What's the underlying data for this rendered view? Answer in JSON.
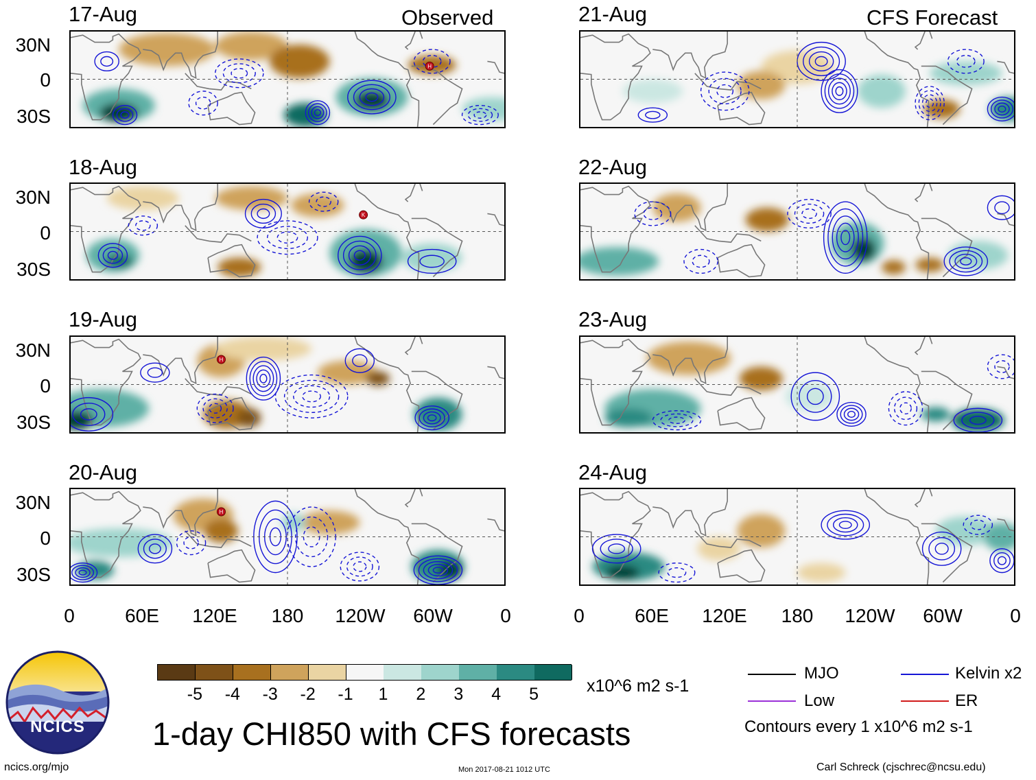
{
  "headers": {
    "observed": "Observed",
    "forecast": "CFS Forecast"
  },
  "panels": [
    {
      "date": "17-Aug",
      "type": "observed"
    },
    {
      "date": "18-Aug",
      "type": "observed"
    },
    {
      "date": "19-Aug",
      "type": "observed"
    },
    {
      "date": "20-Aug",
      "type": "observed"
    },
    {
      "date": "21-Aug",
      "type": "forecast"
    },
    {
      "date": "22-Aug",
      "type": "forecast"
    },
    {
      "date": "23-Aug",
      "type": "forecast"
    },
    {
      "date": "24-Aug",
      "type": "forecast"
    }
  ],
  "lat_labels": [
    "30N",
    "0",
    "30S"
  ],
  "lon_labels": [
    "0",
    "60E",
    "120E",
    "180",
    "120W",
    "60W",
    "0"
  ],
  "colorbar": {
    "colors": [
      "#5a3a14",
      "#7e5118",
      "#a8701f",
      "#cfa35c",
      "#ead4a3",
      "#f8ecd0",
      "#f6f6f6",
      "#cbe7e2",
      "#9ed4cc",
      "#5fb0a6",
      "#2b8a82",
      "#0f6a60",
      "#053f36"
    ],
    "labels": [
      "-5",
      "-4",
      "-3",
      "-2",
      "-1",
      "1",
      "2",
      "3",
      "4",
      "5"
    ],
    "units": "x10^6 m2 s-1"
  },
  "legend": {
    "items": [
      {
        "label": "MJO",
        "color": "#000000"
      },
      {
        "label": "Kelvin x2",
        "color": "#1515d6"
      },
      {
        "label": "Low",
        "color": "#9a30d8"
      },
      {
        "label": "ER",
        "color": "#d11b1b"
      }
    ],
    "note": "Contours every 1 x10^6 m2 s-1"
  },
  "title": "1-day CHI850 with CFS forecasts",
  "logo_text": "NCICS",
  "footer": {
    "url": "ncics.org/mjo",
    "timestamp": "Mon 2017-08-21 1012 UTC",
    "author": "Carl Schreck (cjschrec@ncsu.edu)"
  },
  "storm_markers": [
    {
      "panel": "17-Aug",
      "symbol": "H",
      "lon": 298,
      "lat": 11
    },
    {
      "panel": "18-Aug",
      "symbol": "K",
      "lon": 243,
      "lat": 14
    },
    {
      "panel": "19-Aug",
      "symbol": "H",
      "lon": 125,
      "lat": 21
    },
    {
      "panel": "20-Aug",
      "symbol": "H",
      "lon": 125,
      "lat": 21
    }
  ]
}
